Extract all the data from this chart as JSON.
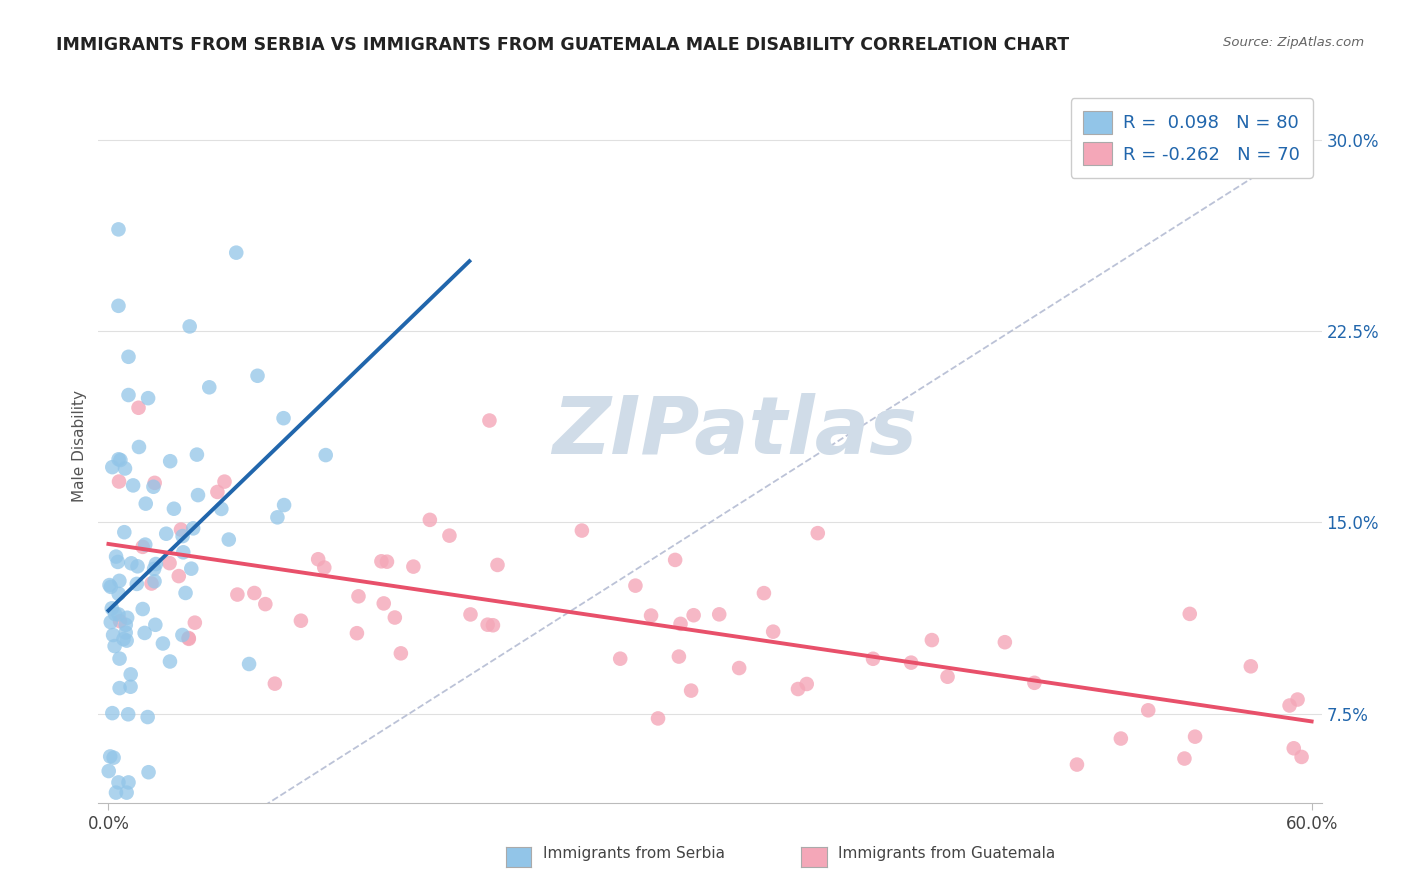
{
  "title": "IMMIGRANTS FROM SERBIA VS IMMIGRANTS FROM GUATEMALA MALE DISABILITY CORRELATION CHART",
  "source": "Source: ZipAtlas.com",
  "ylabel": "Male Disability",
  "yticks": [
    0.075,
    0.15,
    0.225,
    0.3
  ],
  "ytick_labels": [
    "7.5%",
    "15.0%",
    "22.5%",
    "30.0%"
  ],
  "xtick_left": "0.0%",
  "xtick_right": "60.0%",
  "xlim": [
    0.0,
    0.6
  ],
  "ylim": [
    0.04,
    0.32
  ],
  "legend1_R": "0.098",
  "legend1_N": "80",
  "legend2_R": "-0.262",
  "legend2_N": "70",
  "serbia_color": "#92c5e8",
  "guatemala_color": "#f4a7b8",
  "serbia_line_color": "#2166ac",
  "guatemala_line_color": "#e8506a",
  "diag_color": "#b0b8d0",
  "watermark_color": "#d0dce8",
  "background_color": "#ffffff",
  "grid_color": "#e0e0e0",
  "title_color": "#222222",
  "source_color": "#666666",
  "ytick_color": "#2166ac",
  "xtick_color": "#444444",
  "legend_text_color": "#2166ac",
  "bottom_legend_color": "#444444",
  "serbia_seed": 42,
  "guatemala_seed": 7
}
